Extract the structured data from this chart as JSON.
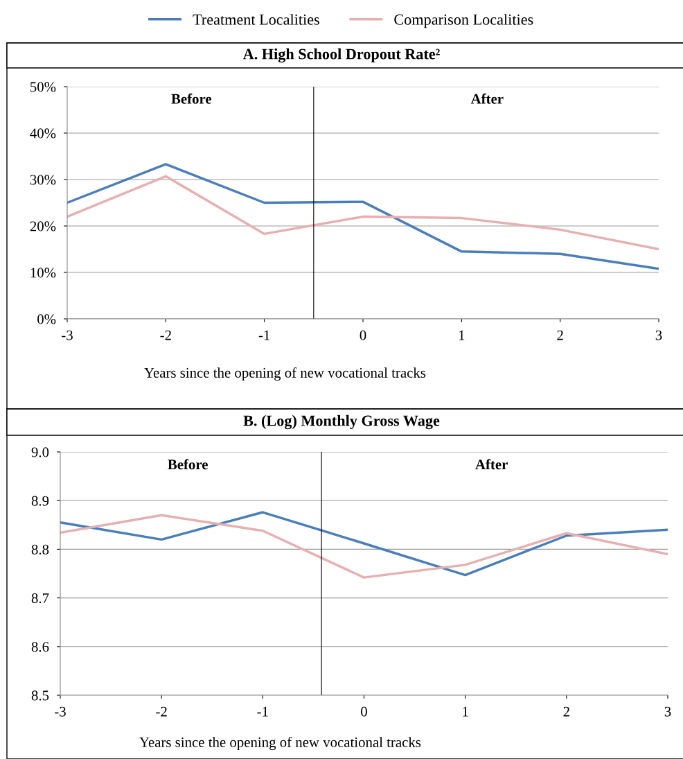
{
  "chart_data": [
    {
      "type": "line",
      "title": "A. High School Dropout Rate²",
      "xlabel": "Years since the opening of new vocational tracks",
      "x": [
        -3,
        -2,
        -1,
        0,
        1,
        2,
        3
      ],
      "series": [
        {
          "name": "Treatment Localities",
          "color": "#4a7ebb",
          "values": [
            25,
            33.3,
            25,
            25.2,
            14.5,
            14,
            10.8
          ]
        },
        {
          "name": "Comparison Localities",
          "color": "#e6b0b0",
          "values": [
            22,
            30.7,
            18.3,
            22,
            21.7,
            19.2,
            15
          ]
        }
      ],
      "xlim": [
        -3,
        3
      ],
      "xticks": [
        -3,
        -2,
        -1,
        0,
        1,
        2,
        3
      ],
      "ylim": [
        0,
        50
      ],
      "yticks": [
        {
          "value": 0,
          "label": "0%"
        },
        {
          "value": 10,
          "label": "10%"
        },
        {
          "value": 20,
          "label": "20%"
        },
        {
          "value": 30,
          "label": "30%"
        },
        {
          "value": 40,
          "label": "40%"
        },
        {
          "value": 50,
          "label": "50%"
        }
      ],
      "grid": "y",
      "legend": "top",
      "ref_lines": [
        {
          "axis": "x",
          "value": -0.5,
          "color": "#000000"
        }
      ],
      "annotations": [
        "Before",
        "After"
      ]
    },
    {
      "type": "line",
      "title": "B. (Log) Monthly Gross Wage",
      "xlabel": "Years since the opening of new vocational tracks",
      "x": [
        -3,
        -2,
        -1,
        0,
        1,
        2,
        3
      ],
      "series": [
        {
          "color": "#4a7ebb",
          "values": [
            8.855,
            8.82,
            8.876,
            8.812,
            8.747,
            8.828,
            8.84
          ]
        },
        {
          "color": "#e6b0b0",
          "values": [
            8.834,
            8.87,
            8.838,
            8.742,
            8.768,
            8.833,
            8.79
          ]
        }
      ],
      "xlim": [
        -3,
        3
      ],
      "xticks": [
        -3,
        -2,
        -1,
        0,
        1,
        2,
        3
      ],
      "ylim": [
        8.5,
        9.0
      ],
      "yticks": [
        {
          "value": 8.5,
          "label": "8.5"
        },
        {
          "value": 8.6,
          "label": "8.6"
        },
        {
          "value": 8.7,
          "label": "8.7"
        },
        {
          "value": 8.8,
          "label": "8.8"
        },
        {
          "value": 8.9,
          "label": "8.9"
        },
        {
          "value": 9.0,
          "label": "9.0"
        }
      ],
      "grid": "y",
      "ref_lines": [
        {
          "axis": "x",
          "value": -0.42,
          "color": "#000000"
        }
      ],
      "annotations": [
        "Before",
        "After"
      ]
    }
  ]
}
